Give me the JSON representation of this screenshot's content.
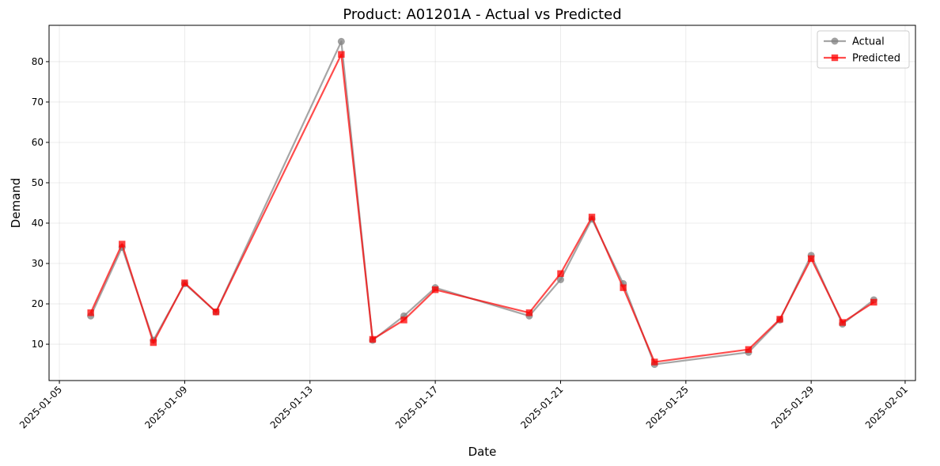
{
  "chart_data": {
    "type": "line",
    "title": "Product: A01201A - Actual vs Predicted",
    "xlabel": "Date",
    "ylabel": "Demand",
    "x_type": "date",
    "xlim": [
      "2025-01-05",
      "2025-02-01"
    ],
    "ylim": [
      1.0,
      89.0
    ],
    "x_ticks": [
      "2025-01-05",
      "2025-01-09",
      "2025-01-13",
      "2025-01-17",
      "2025-01-21",
      "2025-01-25",
      "2025-01-29",
      "2025-02-01"
    ],
    "y_ticks": [
      10,
      20,
      30,
      40,
      50,
      60,
      70,
      80
    ],
    "grid": true,
    "legend_position": "top-right",
    "x": [
      "2025-01-06",
      "2025-01-07",
      "2025-01-08",
      "2025-01-09",
      "2025-01-10",
      "2025-01-14",
      "2025-01-15",
      "2025-01-16",
      "2025-01-17",
      "2025-01-20",
      "2025-01-21",
      "2025-01-22",
      "2025-01-23",
      "2025-01-24",
      "2025-01-27",
      "2025-01-28",
      "2025-01-29",
      "2025-01-30",
      "2025-01-31"
    ],
    "series": [
      {
        "name": "Actual",
        "color": "#808080",
        "marker": "circle",
        "values": [
          17,
          34,
          11,
          25,
          18,
          85,
          11,
          17,
          24,
          17,
          26,
          41,
          25,
          5,
          8,
          16,
          32,
          15,
          21
        ]
      },
      {
        "name": "Predicted",
        "color": "#ff0000",
        "marker": "square",
        "values": [
          17.8,
          34.8,
          10.4,
          25.2,
          18.0,
          81.8,
          11.2,
          16.0,
          23.5,
          17.8,
          27.5,
          41.5,
          24.0,
          5.6,
          8.7,
          16.2,
          31.2,
          15.4,
          20.4
        ]
      }
    ]
  }
}
